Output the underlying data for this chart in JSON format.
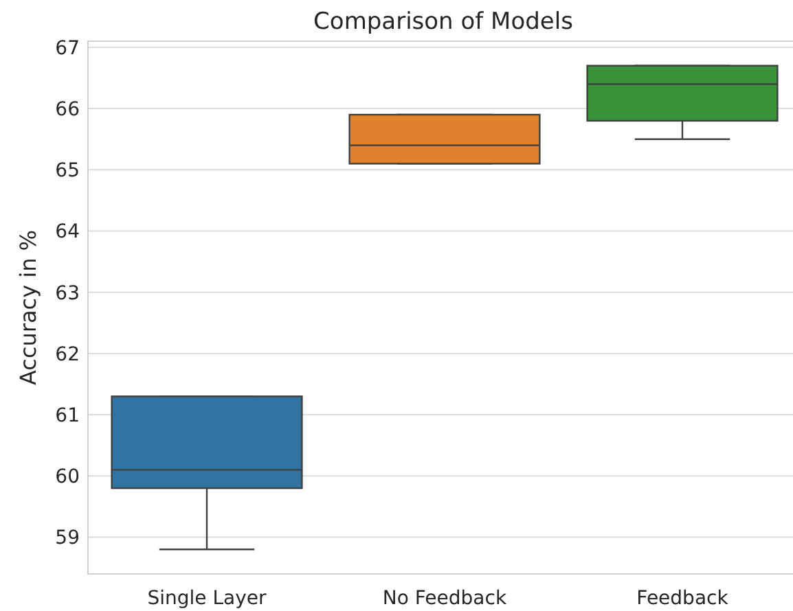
{
  "chart_data": {
    "type": "box",
    "title": "Comparison of Models",
    "ylabel": "Accuracy in %",
    "categories": [
      "Single Layer",
      "No Feedback",
      "Feedback"
    ],
    "colors": [
      "#3274a1",
      "#e1812c",
      "#3a923a"
    ],
    "boxes": [
      {
        "low": 58.8,
        "q1": 59.8,
        "median": 60.1,
        "q3": 61.3,
        "high": 61.3
      },
      {
        "low": 65.1,
        "q1": 65.1,
        "median": 65.4,
        "q3": 65.9,
        "high": 65.9
      },
      {
        "low": 65.5,
        "q1": 65.8,
        "median": 66.4,
        "q3": 66.7,
        "high": 66.7
      }
    ],
    "ylim": [
      58.4,
      67.1
    ],
    "yticks": [
      59,
      60,
      61,
      62,
      63,
      64,
      65,
      66,
      67
    ],
    "grid": "y"
  }
}
